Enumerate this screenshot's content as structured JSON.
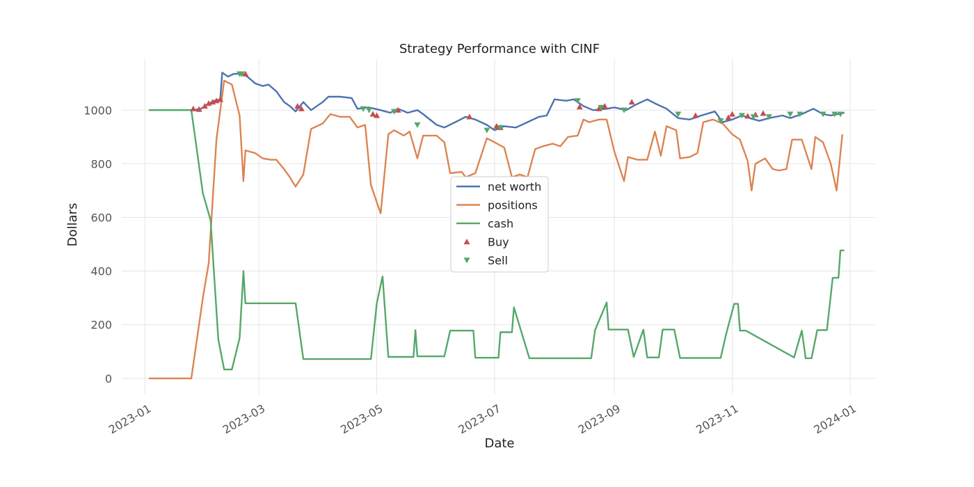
{
  "chart_data": {
    "type": "line",
    "title": "Strategy Performance with CINF",
    "xlabel": "Date",
    "ylabel": "Dollars",
    "x_axis_type": "date",
    "xlim": [
      "2022-12-20",
      "2024-01-14"
    ],
    "ylim": [
      -60,
      1190
    ],
    "grid": true,
    "legend_placement": "center",
    "x_ticks": [
      "2023-01",
      "2023-03",
      "2023-05",
      "2023-07",
      "2023-09",
      "2023-11",
      "2024-01"
    ],
    "y_ticks": [
      0,
      200,
      400,
      600,
      800,
      1000
    ],
    "series": [
      {
        "name": "net worth",
        "color": "#4c72b0",
        "points": [
          [
            "2023-01-03",
            1000
          ],
          [
            "2023-01-26",
            1000
          ],
          [
            "2023-01-30",
            1005
          ],
          [
            "2023-02-02",
            1020
          ],
          [
            "2023-02-06",
            1035
          ],
          [
            "2023-02-09",
            1040
          ],
          [
            "2023-02-10",
            1140
          ],
          [
            "2023-02-13",
            1125
          ],
          [
            "2023-02-16",
            1135
          ],
          [
            "2023-02-20",
            1135
          ],
          [
            "2023-02-23",
            1125
          ],
          [
            "2023-02-27",
            1100
          ],
          [
            "2023-03-03",
            1090
          ],
          [
            "2023-03-06",
            1095
          ],
          [
            "2023-03-10",
            1070
          ],
          [
            "2023-03-14",
            1030
          ],
          [
            "2023-03-17",
            1015
          ],
          [
            "2023-03-20",
            995
          ],
          [
            "2023-03-24",
            1030
          ],
          [
            "2023-03-28",
            1000
          ],
          [
            "2023-04-03",
            1030
          ],
          [
            "2023-04-06",
            1050
          ],
          [
            "2023-04-12",
            1050
          ],
          [
            "2023-04-18",
            1045
          ],
          [
            "2023-04-21",
            1005
          ],
          [
            "2023-04-27",
            1010
          ],
          [
            "2023-05-03",
            1000
          ],
          [
            "2023-05-08",
            990
          ],
          [
            "2023-05-12",
            1005
          ],
          [
            "2023-05-17",
            990
          ],
          [
            "2023-05-22",
            1000
          ],
          [
            "2023-05-25",
            985
          ],
          [
            "2023-06-01",
            945
          ],
          [
            "2023-06-05",
            935
          ],
          [
            "2023-06-12",
            960
          ],
          [
            "2023-06-16",
            975
          ],
          [
            "2023-06-21",
            965
          ],
          [
            "2023-06-27",
            945
          ],
          [
            "2023-07-01",
            925
          ],
          [
            "2023-07-06",
            940
          ],
          [
            "2023-07-12",
            935
          ],
          [
            "2023-07-18",
            955
          ],
          [
            "2023-07-24",
            975
          ],
          [
            "2023-07-28",
            980
          ],
          [
            "2023-08-01",
            1040
          ],
          [
            "2023-08-07",
            1035
          ],
          [
            "2023-08-11",
            1040
          ],
          [
            "2023-08-16",
            1015
          ],
          [
            "2023-08-21",
            1000
          ],
          [
            "2023-08-28",
            1005
          ],
          [
            "2023-09-01",
            1010
          ],
          [
            "2023-09-07",
            1000
          ],
          [
            "2023-09-12",
            1020
          ],
          [
            "2023-09-18",
            1040
          ],
          [
            "2023-09-22",
            1025
          ],
          [
            "2023-09-28",
            1005
          ],
          [
            "2023-10-04",
            970
          ],
          [
            "2023-10-10",
            965
          ],
          [
            "2023-10-16",
            980
          ],
          [
            "2023-10-23",
            995
          ],
          [
            "2023-10-27",
            955
          ],
          [
            "2023-11-01",
            965
          ],
          [
            "2023-11-06",
            980
          ],
          [
            "2023-11-10",
            970
          ],
          [
            "2023-11-15",
            960
          ],
          [
            "2023-11-20",
            970
          ],
          [
            "2023-11-27",
            980
          ],
          [
            "2023-12-01",
            970
          ],
          [
            "2023-12-07",
            985
          ],
          [
            "2023-12-13",
            1005
          ],
          [
            "2023-12-18",
            985
          ],
          [
            "2023-12-22",
            980
          ],
          [
            "2023-12-29",
            990
          ]
        ]
      },
      {
        "name": "positions",
        "color": "#dd8452",
        "points": [
          [
            "2023-01-03",
            0
          ],
          [
            "2023-01-25",
            0
          ],
          [
            "2023-01-31",
            300
          ],
          [
            "2023-02-03",
            430
          ],
          [
            "2023-02-07",
            890
          ],
          [
            "2023-02-11",
            1110
          ],
          [
            "2023-02-15",
            1095
          ],
          [
            "2023-02-19",
            980
          ],
          [
            "2023-02-21",
            735
          ],
          [
            "2023-02-22",
            850
          ],
          [
            "2023-02-27",
            840
          ],
          [
            "2023-03-03",
            820
          ],
          [
            "2023-03-07",
            815
          ],
          [
            "2023-03-10",
            815
          ],
          [
            "2023-03-14",
            780
          ],
          [
            "2023-03-17",
            750
          ],
          [
            "2023-03-20",
            715
          ],
          [
            "2023-03-24",
            760
          ],
          [
            "2023-03-28",
            930
          ],
          [
            "2023-04-03",
            950
          ],
          [
            "2023-04-07",
            985
          ],
          [
            "2023-04-12",
            975
          ],
          [
            "2023-04-17",
            975
          ],
          [
            "2023-04-21",
            935
          ],
          [
            "2023-04-25",
            945
          ],
          [
            "2023-04-28",
            720
          ],
          [
            "2023-05-03",
            615
          ],
          [
            "2023-05-07",
            910
          ],
          [
            "2023-05-10",
            925
          ],
          [
            "2023-05-15",
            905
          ],
          [
            "2023-05-18",
            920
          ],
          [
            "2023-05-22",
            820
          ],
          [
            "2023-05-25",
            905
          ],
          [
            "2023-06-01",
            905
          ],
          [
            "2023-06-05",
            880
          ],
          [
            "2023-06-08",
            765
          ],
          [
            "2023-06-14",
            770
          ],
          [
            "2023-06-16",
            750
          ],
          [
            "2023-06-21",
            765
          ],
          [
            "2023-06-27",
            895
          ],
          [
            "2023-07-01",
            880
          ],
          [
            "2023-07-06",
            860
          ],
          [
            "2023-07-10",
            750
          ],
          [
            "2023-07-14",
            760
          ],
          [
            "2023-07-18",
            750
          ],
          [
            "2023-07-22",
            855
          ],
          [
            "2023-07-26",
            865
          ],
          [
            "2023-07-31",
            875
          ],
          [
            "2023-08-04",
            865
          ],
          [
            "2023-08-08",
            900
          ],
          [
            "2023-08-13",
            905
          ],
          [
            "2023-08-16",
            965
          ],
          [
            "2023-08-19",
            955
          ],
          [
            "2023-08-24",
            965
          ],
          [
            "2023-08-28",
            965
          ],
          [
            "2023-09-01",
            845
          ],
          [
            "2023-09-06",
            735
          ],
          [
            "2023-09-08",
            825
          ],
          [
            "2023-09-13",
            815
          ],
          [
            "2023-09-18",
            815
          ],
          [
            "2023-09-22",
            920
          ],
          [
            "2023-09-25",
            830
          ],
          [
            "2023-09-28",
            940
          ],
          [
            "2023-10-03",
            925
          ],
          [
            "2023-10-05",
            820
          ],
          [
            "2023-10-10",
            825
          ],
          [
            "2023-10-14",
            840
          ],
          [
            "2023-10-17",
            955
          ],
          [
            "2023-10-22",
            965
          ],
          [
            "2023-10-27",
            950
          ],
          [
            "2023-11-01",
            910
          ],
          [
            "2023-11-05",
            890
          ],
          [
            "2023-11-09",
            810
          ],
          [
            "2023-11-11",
            700
          ],
          [
            "2023-11-13",
            800
          ],
          [
            "2023-11-18",
            820
          ],
          [
            "2023-11-22",
            780
          ],
          [
            "2023-11-25",
            775
          ],
          [
            "2023-11-29",
            780
          ],
          [
            "2023-12-02",
            890
          ],
          [
            "2023-12-07",
            890
          ],
          [
            "2023-12-12",
            780
          ],
          [
            "2023-12-14",
            900
          ],
          [
            "2023-12-18",
            880
          ],
          [
            "2023-12-22",
            800
          ],
          [
            "2023-12-25",
            700
          ],
          [
            "2023-12-28",
            910
          ]
        ]
      },
      {
        "name": "cash",
        "color": "#55a868",
        "points": [
          [
            "2023-01-03",
            1000
          ],
          [
            "2023-01-25",
            1000
          ],
          [
            "2023-01-31",
            690
          ],
          [
            "2023-02-04",
            590
          ],
          [
            "2023-02-08",
            145
          ],
          [
            "2023-02-11",
            33
          ],
          [
            "2023-02-15",
            33
          ],
          [
            "2023-02-19",
            150
          ],
          [
            "2023-02-21",
            400
          ],
          [
            "2023-02-22",
            280
          ],
          [
            "2023-03-20",
            280
          ],
          [
            "2023-03-24",
            72
          ],
          [
            "2023-04-28",
            72
          ],
          [
            "2023-05-01",
            280
          ],
          [
            "2023-05-04",
            380
          ],
          [
            "2023-05-07",
            80
          ],
          [
            "2023-05-20",
            80
          ],
          [
            "2023-05-21",
            180
          ],
          [
            "2023-05-22",
            82
          ],
          [
            "2023-06-05",
            82
          ],
          [
            "2023-06-08",
            178
          ],
          [
            "2023-06-20",
            178
          ],
          [
            "2023-06-21",
            77
          ],
          [
            "2023-07-03",
            77
          ],
          [
            "2023-07-04",
            172
          ],
          [
            "2023-07-10",
            172
          ],
          [
            "2023-07-11",
            265
          ],
          [
            "2023-07-15",
            170
          ],
          [
            "2023-07-19",
            75
          ],
          [
            "2023-08-20",
            75
          ],
          [
            "2023-08-22",
            180
          ],
          [
            "2023-08-28",
            283
          ],
          [
            "2023-08-29",
            182
          ],
          [
            "2023-09-08",
            182
          ],
          [
            "2023-09-11",
            80
          ],
          [
            "2023-09-16",
            182
          ],
          [
            "2023-09-18",
            78
          ],
          [
            "2023-09-24",
            78
          ],
          [
            "2023-09-26",
            182
          ],
          [
            "2023-10-02",
            182
          ],
          [
            "2023-10-05",
            76
          ],
          [
            "2023-10-26",
            76
          ],
          [
            "2023-10-29",
            170
          ],
          [
            "2023-11-02",
            278
          ],
          [
            "2023-11-04",
            278
          ],
          [
            "2023-11-05",
            178
          ],
          [
            "2023-11-08",
            178
          ],
          [
            "2023-12-03",
            78
          ],
          [
            "2023-12-07",
            178
          ],
          [
            "2023-12-09",
            75
          ],
          [
            "2023-12-12",
            75
          ],
          [
            "2023-12-15",
            180
          ],
          [
            "2023-12-20",
            180
          ],
          [
            "2023-12-23",
            375
          ],
          [
            "2023-12-26",
            375
          ],
          [
            "2023-12-27",
            477
          ],
          [
            "2023-12-29",
            477
          ]
        ]
      }
    ],
    "markers": [
      {
        "name": "Buy",
        "shape": "triangle-up",
        "color": "#c44e52",
        "points": [
          [
            "2023-01-26",
            1005
          ],
          [
            "2023-01-29",
            1003
          ],
          [
            "2023-02-01",
            1015
          ],
          [
            "2023-02-03",
            1025
          ],
          [
            "2023-02-05",
            1030
          ],
          [
            "2023-02-07",
            1035
          ],
          [
            "2023-02-09",
            1040
          ],
          [
            "2023-02-22",
            1135
          ],
          [
            "2023-03-21",
            1015
          ],
          [
            "2023-03-23",
            1005
          ],
          [
            "2023-04-29",
            985
          ],
          [
            "2023-05-01",
            980
          ],
          [
            "2023-05-12",
            1000
          ],
          [
            "2023-06-18",
            975
          ],
          [
            "2023-07-02",
            940
          ],
          [
            "2023-07-04",
            935
          ],
          [
            "2023-08-14",
            1012
          ],
          [
            "2023-08-24",
            1005
          ],
          [
            "2023-08-27",
            1015
          ],
          [
            "2023-09-10",
            1030
          ],
          [
            "2023-10-13",
            980
          ],
          [
            "2023-10-30",
            972
          ],
          [
            "2023-11-01",
            985
          ],
          [
            "2023-11-09",
            978
          ],
          [
            "2023-11-13",
            983
          ],
          [
            "2023-11-17",
            988
          ]
        ]
      },
      {
        "name": "Sell",
        "shape": "triangle-down",
        "color": "#55a868",
        "points": [
          [
            "2023-02-19",
            1135
          ],
          [
            "2023-02-20",
            1135
          ],
          [
            "2023-04-24",
            1005
          ],
          [
            "2023-04-27",
            1000
          ],
          [
            "2023-05-10",
            995
          ],
          [
            "2023-05-22",
            945
          ],
          [
            "2023-06-27",
            925
          ],
          [
            "2023-07-04",
            935
          ],
          [
            "2023-08-13",
            1035
          ],
          [
            "2023-08-25",
            1010
          ],
          [
            "2023-09-06",
            1000
          ],
          [
            "2023-10-04",
            985
          ],
          [
            "2023-10-26",
            960
          ],
          [
            "2023-11-06",
            980
          ],
          [
            "2023-11-12",
            975
          ],
          [
            "2023-11-20",
            975
          ],
          [
            "2023-12-01",
            985
          ],
          [
            "2023-12-06",
            985
          ],
          [
            "2023-12-18",
            985
          ],
          [
            "2023-12-24",
            985
          ],
          [
            "2023-12-27",
            985
          ]
        ]
      }
    ]
  }
}
